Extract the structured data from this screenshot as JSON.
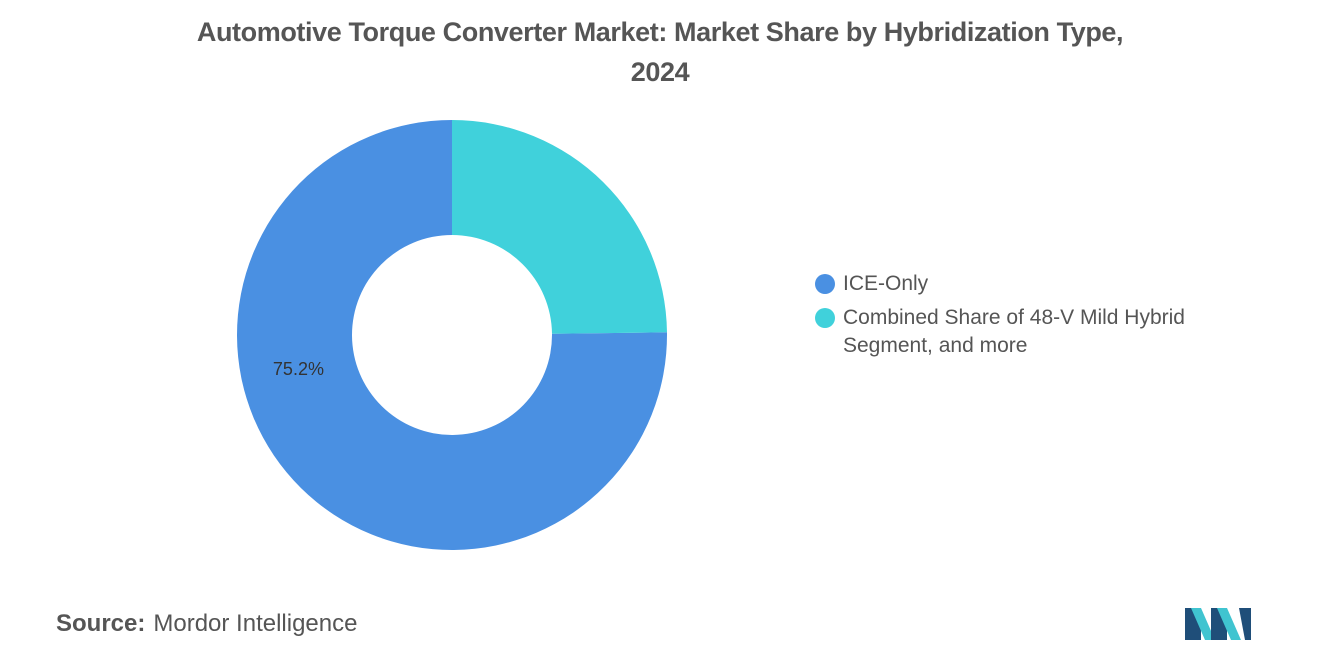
{
  "title_line1": "Automotive Torque Converter Market: Market Share by Hybridization Type,",
  "title_line2": "2024",
  "chart_data": {
    "type": "pie",
    "style": "donut",
    "slices": [
      {
        "label": "ICE-Only",
        "value": 75.2,
        "color": "#4a90e2",
        "data_label": "75.2%"
      },
      {
        "label": "Combined Share of 48-V Mild Hybrid Segment, and more",
        "value": 24.8,
        "color": "#40d1db",
        "data_label": ""
      }
    ],
    "legend_placement": "right"
  },
  "legend": {
    "item1": "ICE-Only",
    "item2_line1": "Combined Share of 48-V Mild Hybrid",
    "item2_line2": "Segment, and more"
  },
  "source": {
    "label": "Source:",
    "text": "Mordor Intelligence"
  },
  "logo_icon": "mordor-intelligence-logo-icon"
}
